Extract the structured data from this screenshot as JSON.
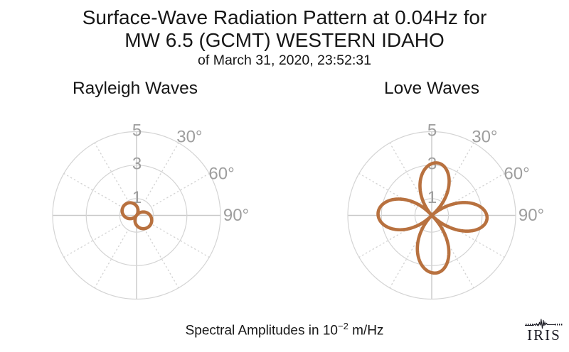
{
  "title": {
    "line1": "Surface-Wave Radiation Pattern at 0.04Hz for",
    "line2": "MW 6.5 (GCMT) WESTERN IDAHO",
    "line3": "of March 31, 2020, 23:52:31"
  },
  "footer": {
    "caption_prefix": "Spectral Amplitudes in ",
    "caption_base": "10",
    "caption_exponent": "−2",
    "caption_suffix": " m/Hz",
    "logo_text": "IRIS"
  },
  "colors": {
    "pattern": "#b8713f",
    "grid": "#d4d4d4",
    "axis": "#c9c9c9",
    "labels": "#9e9e9e",
    "title": "#161616",
    "logo": "#191922"
  },
  "chart_data": [
    {
      "type": "polar",
      "title": "Rayleigh Waves",
      "radial_ticks": [
        1,
        3,
        5
      ],
      "radial_max": 5,
      "angle_labels": [
        "30°",
        "60°",
        "90°"
      ],
      "angle_label_degrees": [
        30,
        60,
        90
      ],
      "spoke_interval_degrees": 30,
      "angle_convention": "degrees clockwise from top (azimuth)",
      "amplitude_units": "10^-2 m/Hz",
      "lobes": [
        {
          "azimuth_deg": 126,
          "amplitude": 1.0
        },
        {
          "azimuth_deg": 306,
          "amplitude": 0.95
        }
      ]
    },
    {
      "type": "polar",
      "title": "Love Waves",
      "radial_ticks": [
        1,
        3,
        5
      ],
      "radial_max": 5,
      "angle_labels": [
        "30°",
        "60°",
        "90°"
      ],
      "angle_label_degrees": [
        30,
        60,
        90
      ],
      "spoke_interval_degrees": 30,
      "angle_convention": "degrees clockwise from top (azimuth)",
      "amplitude_units": "10^-2 m/Hz",
      "lobes": [
        {
          "azimuth_deg": 6,
          "amplitude": 3.15
        },
        {
          "azimuth_deg": 93,
          "amplitude": 3.3
        },
        {
          "azimuth_deg": 176,
          "amplitude": 3.45
        },
        {
          "azimuth_deg": 272,
          "amplitude": 3.2
        }
      ]
    }
  ]
}
